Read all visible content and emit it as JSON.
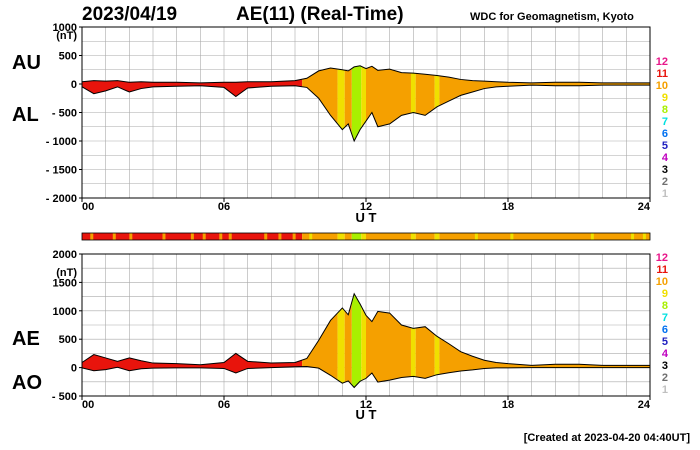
{
  "header": {
    "date": "2023/04/19",
    "title": "AE(11) (Real-Time)",
    "institution": "WDC for Geomagnetism, Kyoto"
  },
  "footer": {
    "created": "[Created at 2023-04-20 04:40UT]"
  },
  "panel_labels": {
    "top_a": "AU",
    "top_b": "AL",
    "bottom_a": "AE",
    "bottom_b": "AO"
  },
  "legend": {
    "items": [
      {
        "label": "12",
        "color": "#e8178a"
      },
      {
        "label": "11",
        "color": "#e8140c"
      },
      {
        "label": "10",
        "color": "#f5a000"
      },
      {
        "label": "9",
        "color": "#f0e000"
      },
      {
        "label": "8",
        "color": "#a8f000"
      },
      {
        "label": "7",
        "color": "#00e0e0"
      },
      {
        "label": "6",
        "color": "#0070f0"
      },
      {
        "label": "5",
        "color": "#2020c0"
      },
      {
        "label": "4",
        "color": "#c000c0"
      },
      {
        "label": "3",
        "color": "#000000"
      },
      {
        "label": "2",
        "color": "#707070"
      },
      {
        "label": "1",
        "color": "#c0c0c0"
      }
    ]
  },
  "colors": {
    "red": "#e8140c",
    "orange": "#f5a000",
    "yellow": "#f0e000",
    "green": "#a8f000"
  },
  "chart_data": [
    {
      "type": "area",
      "panel": "AU/AL",
      "xlabel": "U T",
      "ylabel_unit": "(nT)",
      "xlim": [
        0,
        24
      ],
      "ylim": [
        -2000,
        1000
      ],
      "xticks": [
        {
          "v": 0,
          "label": "00"
        },
        {
          "v": 6,
          "label": "06"
        },
        {
          "v": 12,
          "label": "12"
        },
        {
          "v": 18,
          "label": "18"
        },
        {
          "v": 24,
          "label": "24"
        }
      ],
      "yticks": [
        {
          "v": 1000,
          "label": "1000"
        },
        {
          "v": 500,
          "label": "500"
        },
        {
          "v": 0,
          "label": "0"
        },
        {
          "v": -500,
          "label": "- 500"
        },
        {
          "v": -1000,
          "label": "- 1000"
        },
        {
          "v": -1500,
          "label": "- 1500"
        },
        {
          "v": -2000,
          "label": "- 2000"
        }
      ],
      "grid": true,
      "series": [
        {
          "name": "AU",
          "x": [
            0,
            0.5,
            1,
            1.5,
            2,
            2.5,
            3,
            4,
            5,
            6,
            6.5,
            7,
            8,
            9,
            9.5,
            10,
            10.5,
            11,
            11.25,
            11.5,
            11.75,
            12,
            12.25,
            12.5,
            13,
            13.5,
            14,
            14.5,
            15,
            15.5,
            16,
            16.5,
            17,
            17.5,
            18,
            19,
            20,
            21,
            22,
            23,
            24
          ],
          "values": [
            40,
            60,
            50,
            60,
            30,
            40,
            30,
            30,
            20,
            30,
            30,
            40,
            40,
            60,
            100,
            230,
            280,
            250,
            230,
            300,
            320,
            270,
            310,
            240,
            260,
            200,
            190,
            170,
            150,
            120,
            80,
            60,
            50,
            40,
            30,
            20,
            30,
            30,
            20,
            20,
            20
          ]
        },
        {
          "name": "AL",
          "x": [
            0,
            0.5,
            1,
            1.5,
            2,
            2.5,
            3,
            4,
            5,
            6,
            6.5,
            7,
            8,
            9,
            9.5,
            10,
            10.5,
            11,
            11.25,
            11.5,
            11.75,
            12,
            12.25,
            12.5,
            13,
            13.5,
            14,
            14.5,
            15,
            15.5,
            16,
            16.5,
            17,
            17.5,
            18,
            19,
            20,
            21,
            22,
            23,
            24
          ],
          "values": [
            -50,
            -170,
            -120,
            -50,
            -140,
            -80,
            -50,
            -40,
            -30,
            -60,
            -220,
            -70,
            -40,
            -30,
            -60,
            -250,
            -550,
            -800,
            -700,
            -1000,
            -800,
            -650,
            -500,
            -750,
            -700,
            -550,
            -500,
            -550,
            -400,
            -300,
            -200,
            -140,
            -80,
            -50,
            -40,
            -20,
            -30,
            -30,
            -20,
            -20,
            -20
          ]
        }
      ],
      "activity_bands": [
        {
          "x": [
            0,
            9.3
          ],
          "level": "11"
        },
        {
          "x": [
            9.3,
            10.8
          ],
          "level": "10"
        },
        {
          "x": [
            10.8,
            11.1
          ],
          "level": "9"
        },
        {
          "x": [
            11.1,
            11.4
          ],
          "level": "10"
        },
        {
          "x": [
            11.4,
            11.8
          ],
          "level": "8"
        },
        {
          "x": [
            11.8,
            12.0
          ],
          "level": "9"
        },
        {
          "x": [
            12.0,
            13.9
          ],
          "level": "10"
        },
        {
          "x": [
            13.9,
            14.1
          ],
          "level": "9"
        },
        {
          "x": [
            14.1,
            14.9
          ],
          "level": "10"
        },
        {
          "x": [
            14.9,
            15.1
          ],
          "level": "9"
        },
        {
          "x": [
            15.1,
            24
          ],
          "level": "10"
        }
      ]
    },
    {
      "type": "area",
      "panel": "AE/AO",
      "xlabel": "U T",
      "ylabel_unit": "(nT)",
      "xlim": [
        0,
        24
      ],
      "ylim": [
        -500,
        2000
      ],
      "xticks": [
        {
          "v": 0,
          "label": "00"
        },
        {
          "v": 6,
          "label": "06"
        },
        {
          "v": 12,
          "label": "12"
        },
        {
          "v": 18,
          "label": "18"
        },
        {
          "v": 24,
          "label": "24"
        }
      ],
      "yticks": [
        {
          "v": 2000,
          "label": "2000"
        },
        {
          "v": 1500,
          "label": "1500"
        },
        {
          "v": 1000,
          "label": "1000"
        },
        {
          "v": 500,
          "label": "500"
        },
        {
          "v": 0,
          "label": "0"
        },
        {
          "v": -500,
          "label": "- 500"
        }
      ],
      "grid": true,
      "series": [
        {
          "name": "AE",
          "x": [
            0,
            0.5,
            1,
            1.5,
            2,
            2.5,
            3,
            4,
            5,
            6,
            6.5,
            7,
            8,
            9,
            9.5,
            10,
            10.5,
            11,
            11.25,
            11.5,
            11.75,
            12,
            12.25,
            12.5,
            13,
            13.5,
            14,
            14.5,
            15,
            15.5,
            16,
            16.5,
            17,
            17.5,
            18,
            19,
            20,
            21,
            22,
            23,
            24
          ],
          "values": [
            90,
            230,
            170,
            110,
            170,
            120,
            80,
            70,
            50,
            90,
            250,
            110,
            80,
            90,
            160,
            480,
            830,
            1050,
            930,
            1300,
            1120,
            920,
            810,
            990,
            960,
            750,
            690,
            720,
            550,
            420,
            280,
            200,
            130,
            90,
            70,
            40,
            60,
            60,
            40,
            40,
            40
          ]
        },
        {
          "name": "AO",
          "x": [
            0,
            0.5,
            1,
            1.5,
            2,
            2.5,
            3,
            4,
            5,
            6,
            6.5,
            7,
            8,
            9,
            9.5,
            10,
            10.5,
            11,
            11.25,
            11.5,
            11.75,
            12,
            12.25,
            12.5,
            13,
            13.5,
            14,
            14.5,
            15,
            15.5,
            16,
            16.5,
            17,
            17.5,
            18,
            19,
            20,
            21,
            22,
            23,
            24
          ],
          "values": [
            -5,
            -55,
            -35,
            5,
            -55,
            -20,
            -10,
            -5,
            -5,
            -15,
            -95,
            -15,
            0,
            15,
            20,
            -10,
            -135,
            -275,
            -235,
            -350,
            -240,
            -190,
            -95,
            -255,
            -220,
            -175,
            -155,
            -190,
            -125,
            -90,
            -60,
            -40,
            -15,
            -5,
            -5,
            0,
            0,
            0,
            0,
            0,
            0
          ]
        }
      ],
      "activity_bands": [
        {
          "x": [
            0,
            9.3
          ],
          "level": "11"
        },
        {
          "x": [
            9.3,
            10.8
          ],
          "level": "10"
        },
        {
          "x": [
            10.8,
            11.1
          ],
          "level": "9"
        },
        {
          "x": [
            11.1,
            11.4
          ],
          "level": "10"
        },
        {
          "x": [
            11.4,
            11.8
          ],
          "level": "8"
        },
        {
          "x": [
            11.8,
            12.0
          ],
          "level": "9"
        },
        {
          "x": [
            12.0,
            13.9
          ],
          "level": "10"
        },
        {
          "x": [
            13.9,
            14.1
          ],
          "level": "9"
        },
        {
          "x": [
            14.1,
            14.9
          ],
          "level": "10"
        },
        {
          "x": [
            14.9,
            15.1
          ],
          "level": "9"
        },
        {
          "x": [
            15.1,
            24
          ],
          "level": "10"
        }
      ]
    }
  ]
}
